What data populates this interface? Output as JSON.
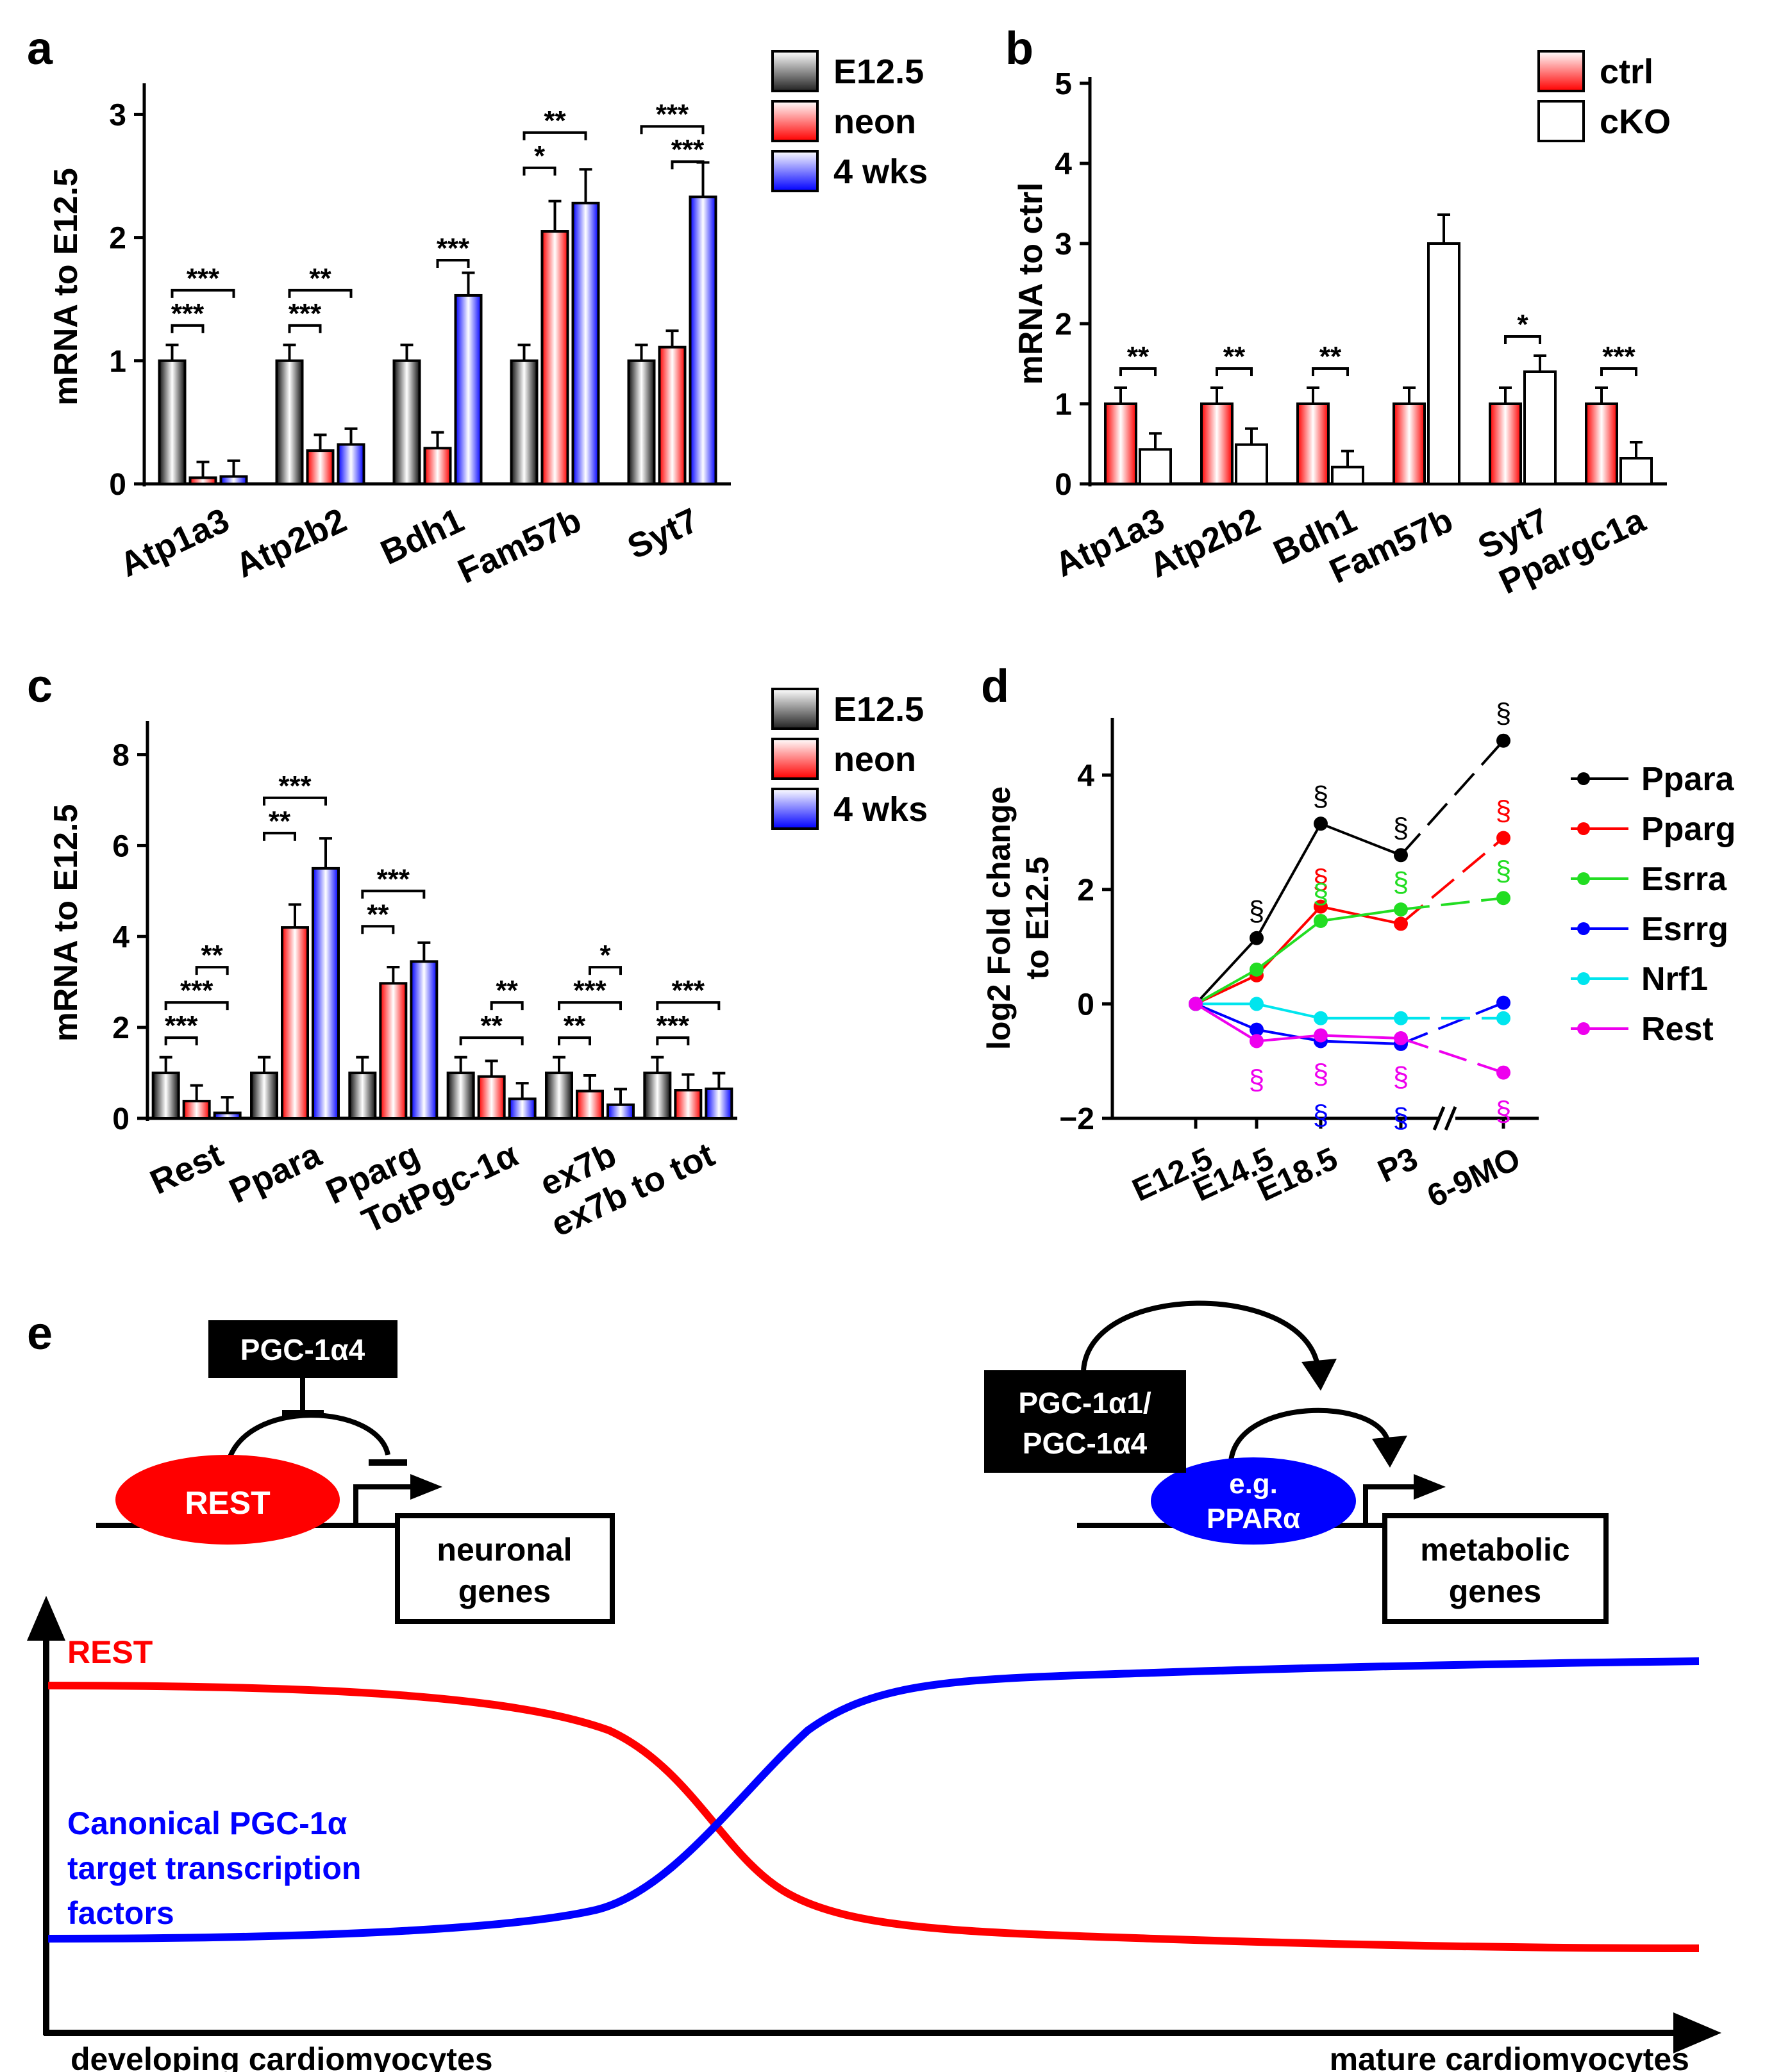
{
  "figure": {
    "panel_letters": [
      "a",
      "b",
      "c",
      "d",
      "e"
    ]
  },
  "colors": {
    "gray": "#000000",
    "red": "#ff0000",
    "blue": "#0000ff",
    "green": "#22dd22",
    "cyan": "#00e5ee",
    "magenta": "#ee00ee"
  },
  "chart_data": [
    {
      "panel": "a",
      "type": "bar",
      "ylabel": "mRNA to E12.5",
      "ylim": [
        0,
        3.2
      ],
      "yticks": [
        "0",
        "1",
        "2",
        "3"
      ],
      "categories": [
        "Atp1a3",
        "Atp2b2",
        "Bdh1",
        "Fam57b",
        "Syt7"
      ],
      "legend": [
        "E12.5",
        "neon",
        "4 wks"
      ],
      "series": [
        {
          "name": "E12.5",
          "values": [
            1.0,
            1.0,
            1.0,
            1.0,
            1.0
          ]
        },
        {
          "name": "neon",
          "values": [
            0.05,
            0.27,
            0.29,
            2.05,
            1.11
          ]
        },
        {
          "name": "4 wks",
          "values": [
            0.06,
            0.32,
            1.53,
            2.28,
            2.33
          ]
        }
      ],
      "sig": [
        {
          "cat": 0,
          "from": 0,
          "to": 1,
          "text": "***"
        },
        {
          "cat": 0,
          "from": 0,
          "to": 2,
          "text": "***"
        },
        {
          "cat": 1,
          "from": 0,
          "to": 1,
          "text": "***"
        },
        {
          "cat": 1,
          "from": 0,
          "to": 2,
          "text": "**"
        },
        {
          "cat": 2,
          "from": 1,
          "to": 2,
          "text": "***"
        },
        {
          "cat": 3,
          "from": 0,
          "to": 1,
          "text": "*"
        },
        {
          "cat": 3,
          "from": 0,
          "to": 2,
          "text": "**"
        },
        {
          "cat": 4,
          "from": 1,
          "to": 2,
          "text": "***"
        },
        {
          "cat": 4,
          "from": 0,
          "to": 2,
          "text": "***"
        }
      ]
    },
    {
      "panel": "b",
      "type": "bar",
      "ylabel": "mRNA to ctrl",
      "ylim": [
        0,
        5
      ],
      "yticks": [
        "0",
        "1",
        "2",
        "3",
        "4",
        "5"
      ],
      "categories": [
        "Atp1a3",
        "Atp2b2",
        "Bdh1",
        "Fam57b",
        "Syt7",
        "Ppargc1a"
      ],
      "legend": [
        "ctrl",
        "cKO"
      ],
      "series": [
        {
          "name": "ctrl",
          "values": [
            1.0,
            1.0,
            1.0,
            1.0,
            1.0,
            1.0
          ]
        },
        {
          "name": "cKO",
          "values": [
            0.43,
            0.49,
            0.21,
            3.0,
            1.4,
            0.32
          ]
        }
      ],
      "sig": [
        {
          "cat": 0,
          "from": 0,
          "to": 1,
          "text": "**"
        },
        {
          "cat": 1,
          "from": 0,
          "to": 1,
          "text": "**"
        },
        {
          "cat": 2,
          "from": 0,
          "to": 1,
          "text": "**"
        },
        {
          "cat": 4,
          "from": 0,
          "to": 1,
          "text": "*"
        },
        {
          "cat": 5,
          "from": 0,
          "to": 1,
          "text": "***"
        }
      ]
    },
    {
      "panel": "c",
      "type": "bar",
      "ylabel": "mRNA to E12.5",
      "ylim": [
        0,
        8.6
      ],
      "yticks": [
        "0",
        "2",
        "4",
        "6",
        "8"
      ],
      "categories": [
        "Rest",
        "Ppara",
        "Pparg",
        "TotPgc-1α",
        "ex7b",
        "ex7b to tot"
      ],
      "legend": [
        "E12.5",
        "neon",
        "4 wks"
      ],
      "series": [
        {
          "name": "E12.5",
          "values": [
            1.0,
            1.0,
            1.0,
            1.0,
            1.0,
            1.0
          ]
        },
        {
          "name": "neon",
          "values": [
            0.38,
            4.2,
            2.97,
            0.92,
            0.6,
            0.62
          ]
        },
        {
          "name": "4 wks",
          "values": [
            0.12,
            5.5,
            3.45,
            0.43,
            0.3,
            0.65
          ]
        }
      ],
      "sig": [
        {
          "cat": 0,
          "from": 0,
          "to": 1,
          "text": "***"
        },
        {
          "cat": 0,
          "from": 0,
          "to": 2,
          "text": "***"
        },
        {
          "cat": 0,
          "from": 1,
          "to": 2,
          "text": "**"
        },
        {
          "cat": 1,
          "from": 0,
          "to": 1,
          "text": "**"
        },
        {
          "cat": 1,
          "from": 0,
          "to": 2,
          "text": "***"
        },
        {
          "cat": 2,
          "from": 0,
          "to": 1,
          "text": "**"
        },
        {
          "cat": 2,
          "from": 0,
          "to": 2,
          "text": "***"
        },
        {
          "cat": 3,
          "from": 0,
          "to": 2,
          "text": "**"
        },
        {
          "cat": 3,
          "from": 1,
          "to": 2,
          "text": "**"
        },
        {
          "cat": 4,
          "from": 0,
          "to": 1,
          "text": "**"
        },
        {
          "cat": 4,
          "from": 0,
          "to": 2,
          "text": "***"
        },
        {
          "cat": 4,
          "from": 1,
          "to": 2,
          "text": "*"
        },
        {
          "cat": 5,
          "from": 0,
          "to": 1,
          "text": "***"
        },
        {
          "cat": 5,
          "from": 0,
          "to": 2,
          "text": "***"
        }
      ]
    },
    {
      "panel": "d",
      "type": "line",
      "ylabel": "log2 Fold change to E12.5",
      "ylim": [
        -2,
        5
      ],
      "yticks": [
        "−2",
        "0",
        "2",
        "4"
      ],
      "x": [
        "E12.5",
        "E14.5",
        "E18.5",
        "P3",
        "6-9MO"
      ],
      "series": [
        {
          "name": "Ppara",
          "color": "#000000",
          "values": [
            0,
            1.15,
            3.15,
            2.6,
            4.6
          ],
          "sig_above": [
            1,
            2,
            3,
            4
          ]
        },
        {
          "name": "Pparg",
          "color": "#ff0000",
          "values": [
            0,
            0.5,
            1.7,
            1.4,
            2.9
          ],
          "sig_above": [
            2,
            4
          ]
        },
        {
          "name": "Esrra",
          "color": "#22dd22",
          "values": [
            0,
            0.6,
            1.45,
            1.65,
            1.85
          ],
          "sig_above": [
            2,
            3,
            4
          ]
        },
        {
          "name": "Esrrg",
          "color": "#0000ff",
          "values": [
            0,
            -0.45,
            -0.65,
            -0.7,
            0.02
          ],
          "sig_below": [
            2,
            3
          ]
        },
        {
          "name": "Nrf1",
          "color": "#00e5ee",
          "values": [
            0,
            0,
            -0.25,
            -0.25,
            -0.25
          ],
          "sig_below": []
        },
        {
          "name": "Rest",
          "color": "#ee00ee",
          "values": [
            0,
            -0.65,
            -0.55,
            -0.6,
            -1.2
          ],
          "sig_below": [
            1,
            2,
            3,
            4
          ]
        }
      ],
      "sig_symbol": "§"
    }
  ],
  "schematic": {
    "left": {
      "inhibitor": "PGC-1α4",
      "factor": "REST",
      "target": [
        "neuronal",
        "genes"
      ]
    },
    "right": {
      "coactivator": [
        "PGC-1α1/",
        "PGC-1α4"
      ],
      "factor": [
        "e.g.",
        "PPARα"
      ],
      "target": [
        "metabolic",
        "genes"
      ]
    },
    "curve_rest_label": "REST",
    "curve_canonical_label": [
      "Canonical PGC-1α",
      "target transcription",
      "factors"
    ],
    "x_left_label": "developing cardiomyocytes",
    "x_right_label": "mature cardiomyocytes"
  }
}
